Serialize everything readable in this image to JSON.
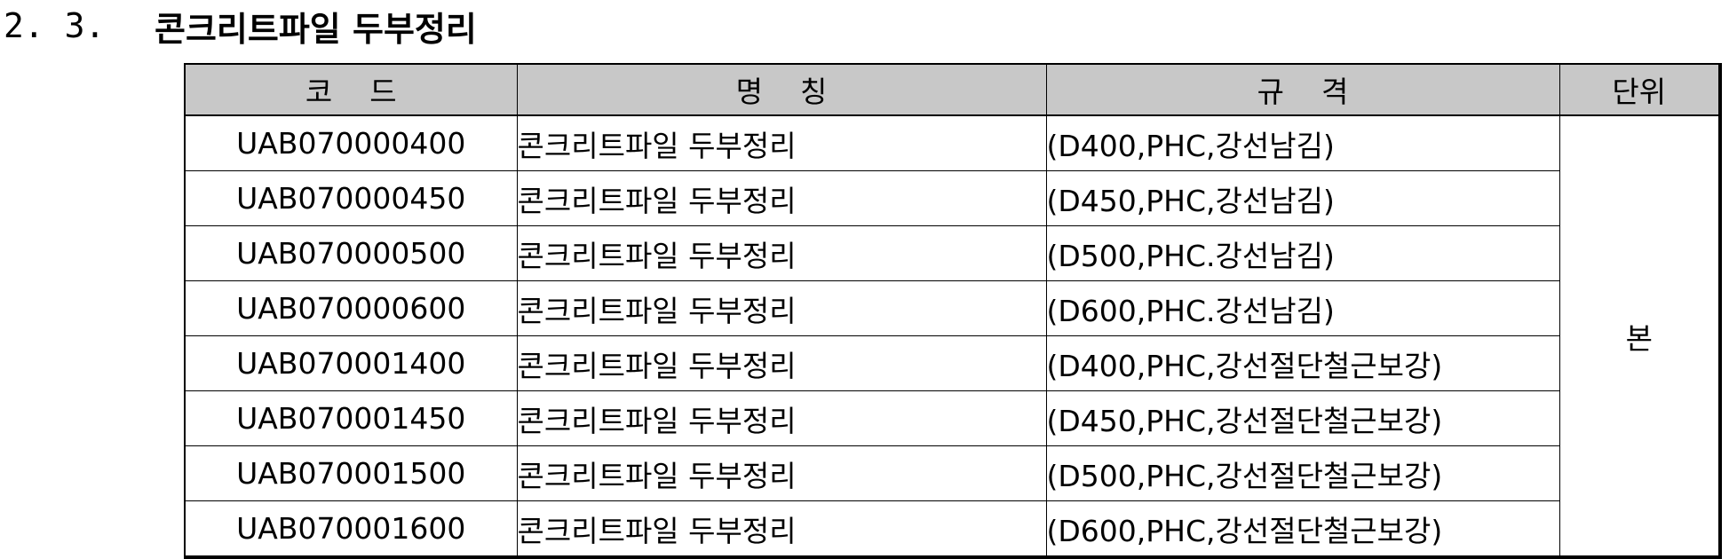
{
  "heading": {
    "number": "2. 3.",
    "title": "콘크리트파일 두부정리"
  },
  "table": {
    "headers": {
      "code": "코    드",
      "name": "명    칭",
      "spec": "규    격",
      "unit": "단위"
    },
    "unit_value": "본",
    "rows": [
      {
        "code": "UAB070000400",
        "name": "콘크리트파일 두부정리",
        "spec": "(D400,PHC,강선남김)"
      },
      {
        "code": "UAB070000450",
        "name": "콘크리트파일 두부정리",
        "spec": "(D450,PHC,강선남김)"
      },
      {
        "code": "UAB070000500",
        "name": "콘크리트파일 두부정리",
        "spec": "(D500,PHC.강선남김)"
      },
      {
        "code": "UAB070000600",
        "name": "콘크리트파일 두부정리",
        "spec": "(D600,PHC.강선남김)"
      },
      {
        "code": "UAB070001400",
        "name": "콘크리트파일 두부정리",
        "spec": "(D400,PHC,강선절단철근보강)"
      },
      {
        "code": "UAB070001450",
        "name": "콘크리트파일 두부정리",
        "spec": "(D450,PHC,강선절단철근보강)"
      },
      {
        "code": "UAB070001500",
        "name": "콘크리트파일 두부정리",
        "spec": "(D500,PHC,강선절단철근보강)"
      },
      {
        "code": "UAB070001600",
        "name": "콘크리트파일 두부정리",
        "spec": "(D600,PHC,강선절단철근보강)"
      }
    ]
  }
}
